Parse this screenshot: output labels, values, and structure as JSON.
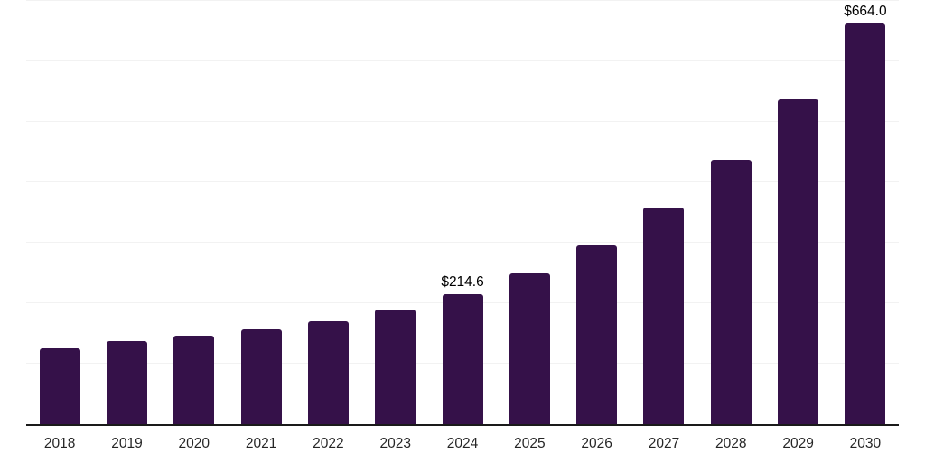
{
  "chart_data": {
    "type": "bar",
    "title": "",
    "categories": [
      "2018",
      "2019",
      "2020",
      "2021",
      "2022",
      "2023",
      "2024",
      "2025",
      "2026",
      "2027",
      "2028",
      "2029",
      "2030"
    ],
    "values": [
      126,
      138,
      146,
      157,
      171,
      190,
      214.6,
      250,
      296,
      358,
      437,
      538,
      664
    ],
    "value_labels": [
      "",
      "",
      "",
      "",
      "",
      "",
      "$214.6",
      "",
      "",
      "",
      "",
      "",
      "$664.0"
    ],
    "xlabel": "",
    "ylabel": "",
    "ylim": [
      0,
      700
    ],
    "gridline_values": [
      100,
      200,
      300,
      400,
      500,
      600,
      700
    ],
    "legend": "none",
    "grid": "horizontal",
    "colors": {
      "bar": "#351149",
      "axis_line": "#1a1a1a",
      "gridline": "#f2f2f2",
      "tick_label": "#262626",
      "value_label": "#000000",
      "background": "#ffffff"
    }
  }
}
